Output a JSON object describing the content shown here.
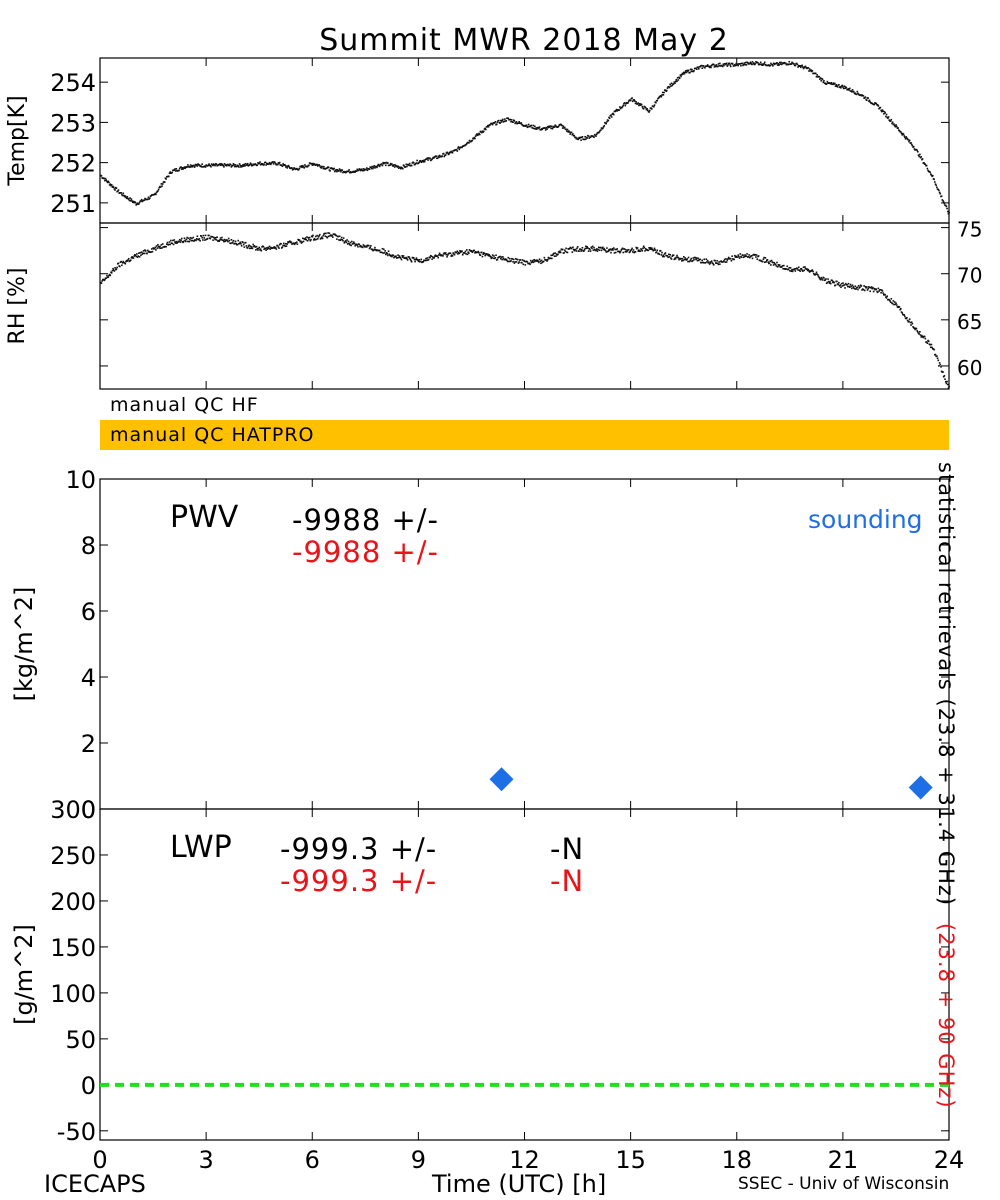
{
  "title": "Summit MWR 2018 May  2",
  "qc": {
    "hf_label": "manual QC HF",
    "hatpro_label": "manual QC HATPRO",
    "hatpro_color": "#FFC000"
  },
  "pwv_panel": {
    "name": "PWV",
    "value_black": "-9988 +/-",
    "value_red": "-9988 +/-",
    "sounding_label": "sounding",
    "sounding_color": "#1E6FE6"
  },
  "lwp_panel": {
    "name": "LWP",
    "value_black": "-999.3 +/-",
    "n_black": "-N",
    "value_red": "-999.3 +/-",
    "n_red": "-N"
  },
  "right_label_black": "statistical retrievals (23.8 + 31.4 GHz)",
  "right_label_red": "(23.8 + 90 GHz)",
  "footer": {
    "left": "ICECAPS",
    "center": "Time (UTC) [h]",
    "right": "SSEC - Univ of Wisconsin"
  },
  "colors": {
    "red": "#E8141A",
    "blue": "#1E6FE6",
    "green": "#22DD22"
  },
  "chart_data": [
    {
      "type": "scatter",
      "ylabel": "Temp[K]",
      "xlim": [
        0,
        24
      ],
      "ylim": [
        250.5,
        254.6
      ],
      "yticks": [
        251,
        252,
        253,
        254
      ],
      "series": [
        {
          "x": [
            0,
            0.5,
            1,
            1.5,
            2,
            2.5,
            3,
            3.5,
            4,
            4.5,
            5,
            5.5,
            6,
            6.5,
            7,
            7.5,
            8,
            8.5,
            9,
            9.5,
            10,
            10.5,
            11,
            11.5,
            12,
            12.5,
            13,
            13.5,
            14,
            14.5,
            15,
            15.5,
            16,
            16.5,
            17,
            17.5,
            18,
            18.5,
            19,
            19.5,
            20,
            20.5,
            21,
            21.5,
            22,
            22.5,
            23,
            23.5,
            24
          ],
          "y": [
            251.7,
            251.3,
            251.0,
            251.2,
            251.8,
            251.95,
            251.95,
            251.95,
            251.95,
            252.0,
            252.0,
            251.85,
            252.0,
            251.85,
            251.8,
            251.85,
            252.0,
            251.9,
            252.05,
            252.15,
            252.3,
            252.6,
            252.95,
            253.1,
            252.95,
            252.85,
            252.95,
            252.6,
            252.7,
            253.25,
            253.6,
            253.3,
            253.85,
            254.25,
            254.4,
            254.45,
            254.45,
            254.5,
            254.45,
            254.5,
            254.35,
            254.0,
            253.9,
            253.7,
            253.4,
            252.9,
            252.4,
            251.7,
            250.7
          ]
        }
      ]
    },
    {
      "type": "scatter",
      "ylabel": "RH [%]",
      "xlim": [
        0,
        24
      ],
      "ylim": [
        57.5,
        75.5
      ],
      "yticks": [
        60,
        65,
        70,
        75
      ],
      "series": [
        {
          "x": [
            0,
            0.5,
            1,
            1.5,
            2,
            2.5,
            3,
            3.5,
            4,
            4.5,
            5,
            5.5,
            6,
            6.5,
            7,
            7.5,
            8,
            8.5,
            9,
            9.5,
            10,
            10.5,
            11,
            11.5,
            12,
            12.5,
            13,
            13.5,
            14,
            14.5,
            15,
            15.5,
            16,
            16.5,
            17,
            17.5,
            18,
            18.5,
            19,
            19.5,
            20,
            20.5,
            21,
            21.5,
            22,
            22.5,
            23,
            23.5,
            24
          ],
          "y": [
            69.0,
            71.0,
            72.0,
            72.8,
            73.5,
            73.8,
            74.0,
            73.8,
            73.3,
            72.8,
            73.0,
            73.5,
            74.0,
            74.3,
            73.5,
            73.0,
            72.5,
            71.8,
            71.5,
            72.0,
            72.3,
            72.5,
            72.0,
            71.6,
            71.3,
            71.5,
            72.5,
            72.8,
            72.8,
            72.6,
            72.6,
            72.9,
            72.0,
            71.7,
            71.5,
            71.2,
            72.0,
            72.0,
            71.2,
            70.5,
            70.6,
            69.3,
            68.8,
            68.6,
            68.3,
            66.7,
            64.3,
            62.2,
            57.4
          ]
        }
      ]
    },
    {
      "type": "scatter",
      "ylabel": "[kg/m^2]",
      "xlim": [
        0,
        24
      ],
      "ylim": [
        0,
        10
      ],
      "yticks": [
        0,
        2,
        4,
        6,
        8,
        10
      ],
      "series": [
        {
          "name": "sounding",
          "x": [
            11.35,
            23.2
          ],
          "y": [
            0.9,
            0.65
          ]
        }
      ]
    },
    {
      "type": "line",
      "ylabel": "[g/m^2]",
      "xlabel": "Time (UTC) [h]",
      "xlim": [
        0,
        24
      ],
      "ylim": [
        -60,
        300
      ],
      "yticks": [
        -50,
        0,
        50,
        100,
        150,
        200,
        250,
        300
      ],
      "xticks": [
        0,
        3,
        6,
        9,
        12,
        15,
        18,
        21,
        24
      ],
      "series": [
        {
          "x": [
            0,
            24
          ],
          "y": [
            0,
            0
          ]
        }
      ]
    }
  ]
}
